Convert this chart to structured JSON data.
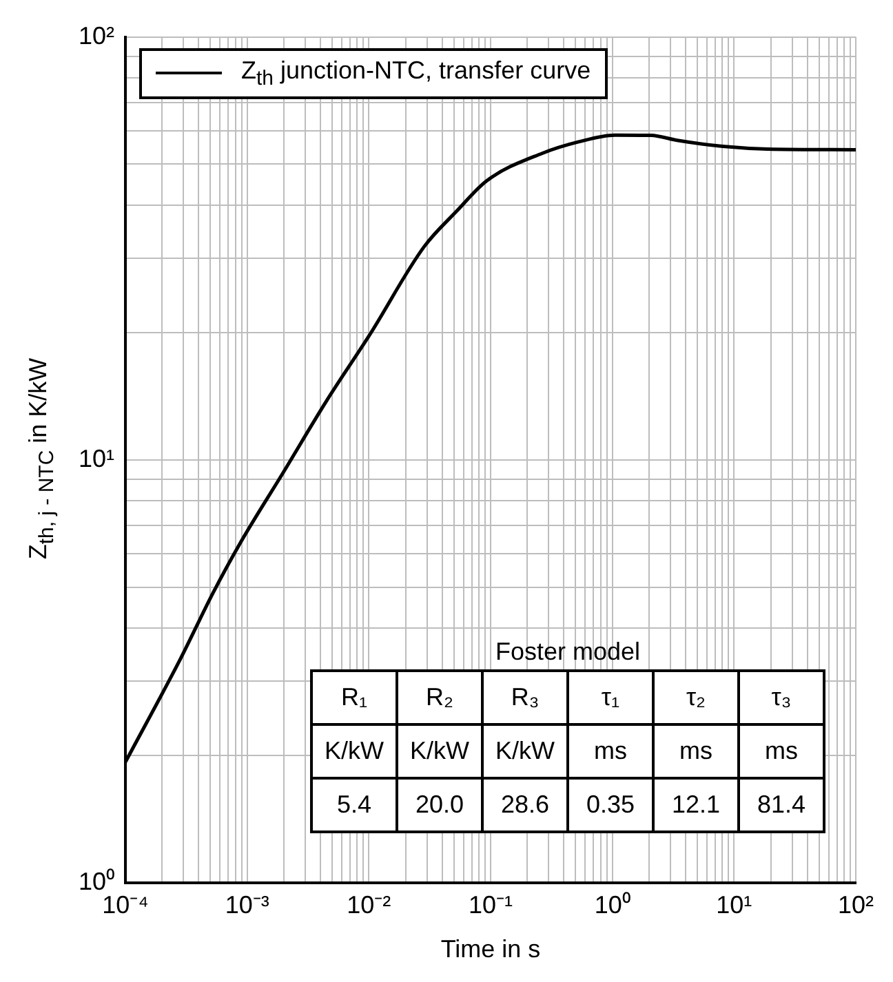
{
  "chart_data": {
    "type": "line",
    "xlabel": "Time in s",
    "ylabel": "Z$_{th, j - NTC}$ in K/kW",
    "log": "xy",
    "grid": true,
    "legend": "top left",
    "marker": "none",
    "line_style": "solid",
    "xlim": [
      0.0001,
      100
    ],
    "ylim": [
      1,
      100
    ],
    "xticks": [
      {
        "value": 0.0001,
        "label": "10⁻⁴"
      },
      {
        "value": 0.0002,
        "label": null
      },
      {
        "value": 0.0003,
        "label": null
      },
      {
        "value": 0.0004,
        "label": null
      },
      {
        "value": 0.0005,
        "label": null
      },
      {
        "value": 0.0006,
        "label": null
      },
      {
        "value": 0.0007,
        "label": null
      },
      {
        "value": 0.0008,
        "label": null
      },
      {
        "value": 0.0009,
        "label": null
      },
      {
        "value": 0.001,
        "label": "10⁻³"
      },
      {
        "value": 0.002,
        "label": null
      },
      {
        "value": 0.003,
        "label": null
      },
      {
        "value": 0.004,
        "label": null
      },
      {
        "value": 0.005,
        "label": null
      },
      {
        "value": 0.006,
        "label": null
      },
      {
        "value": 0.007,
        "label": null
      },
      {
        "value": 0.008,
        "label": null
      },
      {
        "value": 0.009,
        "label": null
      },
      {
        "value": 0.01,
        "label": "10⁻²"
      },
      {
        "value": 0.02,
        "label": null
      },
      {
        "value": 0.03,
        "label": null
      },
      {
        "value": 0.04,
        "label": null
      },
      {
        "value": 0.05,
        "label": null
      },
      {
        "value": 0.06,
        "label": null
      },
      {
        "value": 0.07,
        "label": null
      },
      {
        "value": 0.08,
        "label": null
      },
      {
        "value": 0.09,
        "label": null
      },
      {
        "value": 0.1,
        "label": "10⁻¹"
      },
      {
        "value": 0.2,
        "label": null
      },
      {
        "value": 0.3,
        "label": null
      },
      {
        "value": 0.4,
        "label": null
      },
      {
        "value": 0.5,
        "label": null
      },
      {
        "value": 0.6,
        "label": null
      },
      {
        "value": 0.7,
        "label": null
      },
      {
        "value": 0.8,
        "label": null
      },
      {
        "value": 0.9,
        "label": null
      },
      {
        "value": 1,
        "label": "10⁰"
      },
      {
        "value": 2,
        "label": null
      },
      {
        "value": 3,
        "label": null
      },
      {
        "value": 4,
        "label": null
      },
      {
        "value": 5,
        "label": null
      },
      {
        "value": 6,
        "label": null
      },
      {
        "value": 7,
        "label": null
      },
      {
        "value": 8,
        "label": null
      },
      {
        "value": 9,
        "label": null
      },
      {
        "value": 10,
        "label": "10¹"
      },
      {
        "value": 20,
        "label": null
      },
      {
        "value": 30,
        "label": null
      },
      {
        "value": 40,
        "label": null
      },
      {
        "value": 50,
        "label": null
      },
      {
        "value": 60,
        "label": null
      },
      {
        "value": 70,
        "label": null
      },
      {
        "value": 80,
        "label": null
      },
      {
        "value": 90,
        "label": null
      },
      {
        "value": 100,
        "label": "10²"
      }
    ],
    "yticks": [
      {
        "value": 1,
        "label": "10⁰"
      },
      {
        "value": 2,
        "label": null
      },
      {
        "value": 3,
        "label": null
      },
      {
        "value": 4,
        "label": null
      },
      {
        "value": 5,
        "label": null
      },
      {
        "value": 6,
        "label": null
      },
      {
        "value": 7,
        "label": null
      },
      {
        "value": 8,
        "label": null
      },
      {
        "value": 9,
        "label": null
      },
      {
        "value": 10,
        "label": "10¹"
      },
      {
        "value": 20,
        "label": null
      },
      {
        "value": 30,
        "label": null
      },
      {
        "value": 40,
        "label": null
      },
      {
        "value": 50,
        "label": null
      },
      {
        "value": 60,
        "label": null
      },
      {
        "value": 70,
        "label": null
      },
      {
        "value": 80,
        "label": null
      },
      {
        "value": 90,
        "label": null
      },
      {
        "value": 100,
        "label": "10²"
      }
    ],
    "x": [
      0.0001,
      0.000284,
      0.000525,
      0.000875,
      0.00199,
      0.0045,
      0.0102,
      0.0284,
      0.0525,
      0.093,
      0.267,
      0.53,
      1.05,
      2.07,
      3.47,
      8.07,
      18.9,
      100
    ],
    "series": [
      {
        "name": "Z$_{th}$ junction-NTC, transfer curve",
        "color": "#000000",
        "values": [
          1.93,
          3.39,
          4.85,
          6.35,
          9.36,
          13.8,
          19.8,
          31.9,
          38.7,
          45.7,
          53.1,
          56.5,
          58.6,
          58.5,
          56.9,
          55.1,
          54.3,
          54.1
        ]
      }
    ],
    "annotations": [
      "Foster model",
      "R₁",
      "R₂",
      "R₃",
      "τ₁",
      "τ₂",
      "τ₃",
      "K/kW",
      "K/kW",
      "K/kW",
      "ms",
      "ms",
      "ms",
      "5.4",
      "20.0",
      "28.6",
      "0.35",
      "12.1",
      "81.4"
    ]
  }
}
